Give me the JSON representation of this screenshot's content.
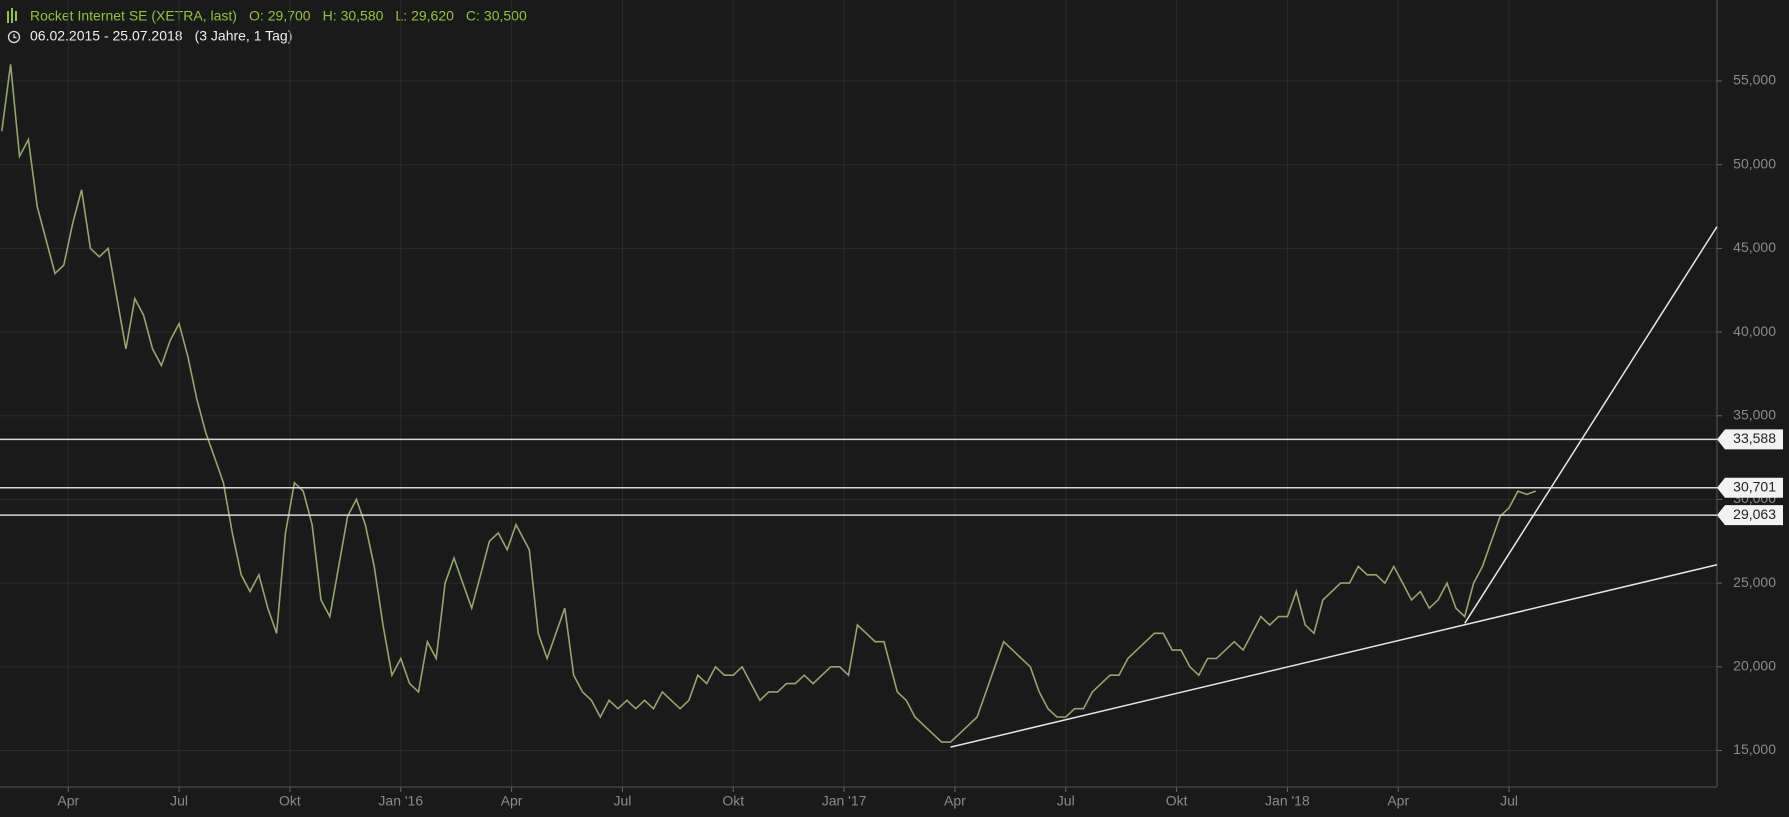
{
  "chart_data": {
    "type": "line",
    "title": "Rocket Internet SE (XETRA, last)",
    "quote": [
      {
        "label": "O:",
        "value": "29,700"
      },
      {
        "label": "H:",
        "value": "30,580"
      },
      {
        "label": "L:",
        "value": "29,620"
      },
      {
        "label": "C:",
        "value": "30,500"
      }
    ],
    "range": "06.02.2015 - 25.07.2018",
    "period": "(3 Jahre, 1 Tag)",
    "xlim": [
      2015.096,
      2018.969
    ],
    "xticks": [
      {
        "value": 2015.25,
        "label": "Apr"
      },
      {
        "value": 2015.5,
        "label": "Jul"
      },
      {
        "value": 2015.75,
        "label": "Okt"
      },
      {
        "value": 2016.0,
        "label": "Jan '16"
      },
      {
        "value": 2016.25,
        "label": "Apr"
      },
      {
        "value": 2016.5,
        "label": "Jul"
      },
      {
        "value": 2016.75,
        "label": "Okt"
      },
      {
        "value": 2017.0,
        "label": "Jan '17"
      },
      {
        "value": 2017.25,
        "label": "Apr"
      },
      {
        "value": 2017.5,
        "label": "Jul"
      },
      {
        "value": 2017.75,
        "label": "Okt"
      },
      {
        "value": 2018.0,
        "label": "Jan '18"
      },
      {
        "value": 2018.25,
        "label": "Apr"
      },
      {
        "value": 2018.5,
        "label": "Jul"
      }
    ],
    "ylim": [
      12.82,
      59.84
    ],
    "yticks": [
      {
        "value": 15,
        "label": "15,000"
      },
      {
        "value": 20,
        "label": "20,000"
      },
      {
        "value": 25,
        "label": "25,000"
      },
      {
        "value": 30,
        "label": "30,000"
      },
      {
        "value": 35,
        "label": "35,000"
      },
      {
        "value": 40,
        "label": "40,000"
      },
      {
        "value": 45,
        "label": "45,000"
      },
      {
        "value": 50,
        "label": "50,000"
      },
      {
        "value": 55,
        "label": "55,000"
      }
    ],
    "grid": true,
    "series": [
      {
        "color": "#93a66e",
        "x": [
          2015.1,
          2015.12,
          2015.14,
          2015.16,
          2015.18,
          2015.2,
          2015.22,
          2015.24,
          2015.26,
          2015.28,
          2015.3,
          2015.32,
          2015.34,
          2015.36,
          2015.38,
          2015.4,
          2015.42,
          2015.44,
          2015.46,
          2015.48,
          2015.5,
          2015.52,
          2015.54,
          2015.56,
          2015.58,
          2015.6,
          2015.62,
          2015.64,
          2015.66,
          2015.68,
          2015.7,
          2015.72,
          2015.74,
          2015.76,
          2015.78,
          2015.8,
          2015.82,
          2015.84,
          2015.86,
          2015.88,
          2015.9,
          2015.92,
          2015.94,
          2015.96,
          2015.98,
          2016.0,
          2016.02,
          2016.04,
          2016.06,
          2016.08,
          2016.1,
          2016.12,
          2016.14,
          2016.16,
          2016.18,
          2016.2,
          2016.22,
          2016.24,
          2016.26,
          2016.29,
          2016.31,
          2016.33,
          2016.35,
          2016.37,
          2016.39,
          2016.41,
          2016.43,
          2016.45,
          2016.47,
          2016.49,
          2016.51,
          2016.53,
          2016.55,
          2016.57,
          2016.59,
          2016.61,
          2016.63,
          2016.65,
          2016.67,
          2016.69,
          2016.71,
          2016.73,
          2016.75,
          2016.77,
          2016.79,
          2016.81,
          2016.83,
          2016.85,
          2016.87,
          2016.89,
          2016.91,
          2016.93,
          2016.95,
          2016.97,
          2016.99,
          2017.01,
          2017.03,
          2017.05,
          2017.07,
          2017.09,
          2017.12,
          2017.14,
          2017.16,
          2017.18,
          2017.2,
          2017.22,
          2017.24,
          2017.26,
          2017.28,
          2017.3,
          2017.32,
          2017.34,
          2017.36,
          2017.38,
          2017.4,
          2017.42,
          2017.44,
          2017.46,
          2017.48,
          2017.5,
          2017.52,
          2017.54,
          2017.56,
          2017.58,
          2017.6,
          2017.62,
          2017.64,
          2017.66,
          2017.68,
          2017.7,
          2017.72,
          2017.74,
          2017.76,
          2017.78,
          2017.8,
          2017.82,
          2017.84,
          2017.86,
          2017.88,
          2017.9,
          2017.92,
          2017.94,
          2017.96,
          2017.98,
          2018.0,
          2018.02,
          2018.04,
          2018.06,
          2018.08,
          2018.1,
          2018.12,
          2018.14,
          2018.16,
          2018.18,
          2018.2,
          2018.22,
          2018.24,
          2018.26,
          2018.28,
          2018.3,
          2018.32,
          2018.34,
          2018.36,
          2018.38,
          2018.4,
          2018.42,
          2018.44,
          2018.46,
          2018.48,
          2018.5,
          2018.52,
          2018.54,
          2018.56
        ],
        "values": [
          52.0,
          56.0,
          50.5,
          51.5,
          47.5,
          45.5,
          43.5,
          44.0,
          46.5,
          48.5,
          45.0,
          44.5,
          45.0,
          42.0,
          39.0,
          42.0,
          41.0,
          39.0,
          38.0,
          39.5,
          40.5,
          38.5,
          36.0,
          34.0,
          32.5,
          31.0,
          28.0,
          25.5,
          24.5,
          25.5,
          23.5,
          22.0,
          28.0,
          31.0,
          30.5,
          28.5,
          24.0,
          23.0,
          26.0,
          29.0,
          30.0,
          28.5,
          26.0,
          22.5,
          19.5,
          20.5,
          19.0,
          18.5,
          21.5,
          20.5,
          25.0,
          26.5,
          25.0,
          23.5,
          25.5,
          27.5,
          28.0,
          27.0,
          28.5,
          27.0,
          22.0,
          20.5,
          22.0,
          23.5,
          19.5,
          18.5,
          18.0,
          17.0,
          18.0,
          17.5,
          18.0,
          17.5,
          18.0,
          17.5,
          18.5,
          18.0,
          17.5,
          18.0,
          19.5,
          19.0,
          20.0,
          19.5,
          19.5,
          20.0,
          19.0,
          18.0,
          18.5,
          18.5,
          19.0,
          19.0,
          19.5,
          19.0,
          19.5,
          20.0,
          20.0,
          19.5,
          22.5,
          22.0,
          21.5,
          21.5,
          18.5,
          18.0,
          17.0,
          16.5,
          16.0,
          15.5,
          15.5,
          16.0,
          16.5,
          17.0,
          18.5,
          20.0,
          21.5,
          21.0,
          20.5,
          20.0,
          18.5,
          17.5,
          17.0,
          17.0,
          17.5,
          17.5,
          18.5,
          19.0,
          19.5,
          19.5,
          20.5,
          21.0,
          21.5,
          22.0,
          22.0,
          21.0,
          21.0,
          20.0,
          19.5,
          20.5,
          20.5,
          21.0,
          21.5,
          21.0,
          22.0,
          23.0,
          22.5,
          23.0,
          23.0,
          24.5,
          22.5,
          22.0,
          24.0,
          24.5,
          25.0,
          25.0,
          26.0,
          25.5,
          25.5,
          25.0,
          26.0,
          25.0,
          24.0,
          24.5,
          23.5,
          24.0,
          25.0,
          23.5,
          23.0,
          25.0,
          26.0,
          27.5,
          29.0,
          29.5,
          30.5,
          30.3,
          30.5
        ]
      }
    ],
    "levels": [
      {
        "value": 33.588,
        "label": "33,588"
      },
      {
        "value": 30.701,
        "label": "30,701"
      },
      {
        "value": 29.063,
        "label": "29,063"
      }
    ],
    "trendlines": [
      {
        "x": [
          2017.24,
          2018.969
        ],
        "y": [
          15.2,
          26.1
        ]
      },
      {
        "x": [
          2018.4,
          2018.969
        ],
        "y": [
          22.6,
          46.3
        ]
      }
    ]
  }
}
